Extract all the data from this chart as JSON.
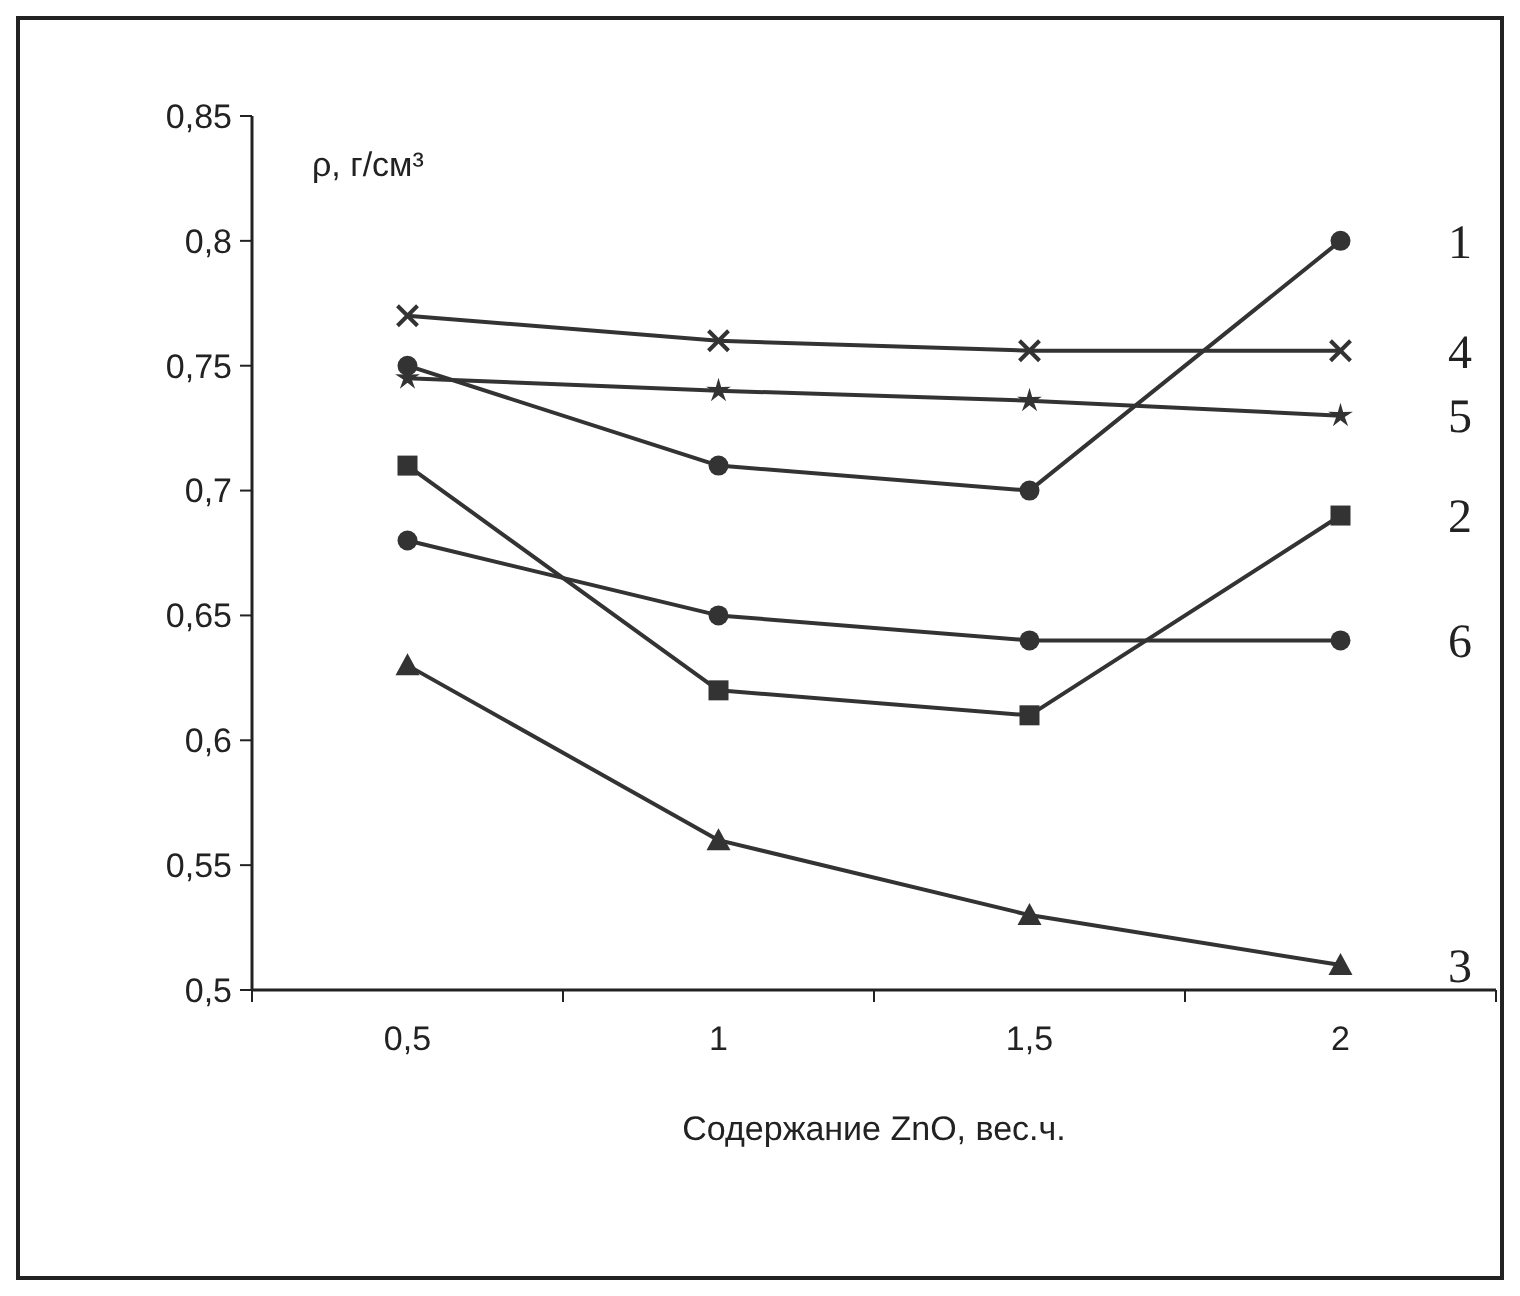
{
  "chart_data": {
    "type": "line",
    "xlabel": "Содержание ZnO, вес.ч.",
    "ylabel": "ρ, г/см³",
    "categories": [
      "0,5",
      "1",
      "1,5",
      "2"
    ],
    "ylim": [
      0.5,
      0.85
    ],
    "yticks": [
      {
        "value": 0.5,
        "label": "0,5"
      },
      {
        "value": 0.55,
        "label": "0,55"
      },
      {
        "value": 0.6,
        "label": "0,6"
      },
      {
        "value": 0.65,
        "label": "0,65"
      },
      {
        "value": 0.7,
        "label": "0,7"
      },
      {
        "value": 0.75,
        "label": "0,75"
      },
      {
        "value": 0.8,
        "label": "0,8"
      },
      {
        "value": 0.85,
        "label": "0,85"
      }
    ],
    "grid": false,
    "line_style": "solid",
    "series": [
      {
        "name": "1",
        "color": "#333333",
        "marker": "circle",
        "values": [
          0.75,
          0.71,
          0.7,
          0.8
        ]
      },
      {
        "name": "4",
        "color": "#333333",
        "marker": "cross",
        "values": [
          0.77,
          0.76,
          0.756,
          0.756
        ]
      },
      {
        "name": "5",
        "color": "#333333",
        "marker": "star",
        "values": [
          0.745,
          0.74,
          0.736,
          0.73
        ]
      },
      {
        "name": "2",
        "color": "#333333",
        "marker": "square",
        "values": [
          0.71,
          0.62,
          0.61,
          0.69
        ]
      },
      {
        "name": "6",
        "color": "#333333",
        "marker": "circle",
        "values": [
          0.68,
          0.65,
          0.64,
          0.64
        ]
      },
      {
        "name": "3",
        "color": "#333333",
        "marker": "triangle",
        "values": [
          0.63,
          0.56,
          0.53,
          0.51
        ]
      }
    ]
  }
}
